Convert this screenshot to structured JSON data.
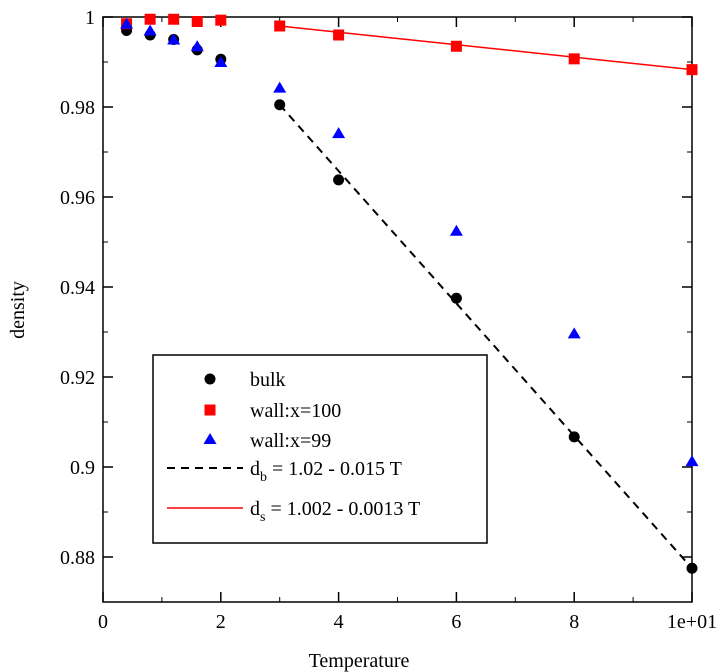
{
  "chart_data": {
    "type": "scatter",
    "xlabel": "Temperature",
    "ylabel": "density",
    "xlim": [
      0,
      10
    ],
    "ylim": [
      0.87,
      1.0
    ],
    "x_ticks": [
      0,
      2,
      4,
      6,
      8,
      10
    ],
    "x_tick_labels": [
      "0",
      "2",
      "4",
      "6",
      "8",
      "1e+01"
    ],
    "y_ticks": [
      0.88,
      0.9,
      0.92,
      0.94,
      0.96,
      0.98,
      1.0
    ],
    "y_tick_labels": [
      "0.88",
      "0.9",
      "0.92",
      "0.94",
      "0.96",
      "0.98",
      "1"
    ],
    "grid": false,
    "legend_position": "bottom-left",
    "series": [
      {
        "name": "bulk",
        "kind": "scatter",
        "marker": "circle",
        "color": "#000000",
        "x": [
          0.4,
          0.8,
          1.2,
          1.6,
          2.0,
          3.0,
          4.0,
          6.0,
          8.0,
          10.0
        ],
        "y": [
          0.997,
          0.996,
          0.995,
          0.9927,
          0.9906,
          0.9805,
          0.9638,
          0.9375,
          0.9067,
          0.8775
        ]
      },
      {
        "name": "wall:x=100",
        "kind": "scatter",
        "marker": "square",
        "color": "#ff0000",
        "x": [
          0.4,
          0.8,
          1.2,
          1.6,
          2.0,
          3.0,
          4.0,
          6.0,
          8.0,
          10.0
        ],
        "y": [
          0.9985,
          0.9995,
          0.9995,
          0.999,
          0.9993,
          0.998,
          0.996,
          0.9935,
          0.9907,
          0.9883
        ]
      },
      {
        "name": "wall:x=99",
        "kind": "scatter",
        "marker": "triangle",
        "color": "#0000ff",
        "x": [
          0.4,
          0.8,
          1.2,
          1.6,
          2.0,
          3.0,
          4.0,
          6.0,
          8.0,
          10.0
        ],
        "y": [
          0.9985,
          0.997,
          0.995,
          0.9935,
          0.99,
          0.9843,
          0.9742,
          0.9525,
          0.9297,
          0.9013
        ]
      },
      {
        "name": "d_b = 1.02 - 0.015 T",
        "kind": "line",
        "dash": true,
        "color": "#000000",
        "x": [
          3.0,
          10.0
        ],
        "y": [
          0.9805,
          0.8775
        ]
      },
      {
        "name": "d_s = 1.002 - 0.0013 T",
        "kind": "line",
        "dash": false,
        "color": "#ff0000",
        "x": [
          3.0,
          10.0
        ],
        "y": [
          0.998,
          0.9883
        ]
      }
    ],
    "legend": [
      {
        "marker": "circle",
        "color": "#000000",
        "text": "bulk"
      },
      {
        "marker": "square",
        "color": "#ff0000",
        "text": "wall:x=100"
      },
      {
        "marker": "triangle",
        "color": "#0000ff",
        "text": "wall:x=99"
      },
      {
        "marker": "dashed-line",
        "color": "#000000",
        "text_main": "d",
        "text_sub": "b",
        "text_rest": " = 1.02 - 0.015 T"
      },
      {
        "marker": "solid-line",
        "color": "#ff0000",
        "text_main": "d",
        "text_sub": "s",
        "text_rest": " = 1.002 - 0.0013 T"
      }
    ]
  }
}
